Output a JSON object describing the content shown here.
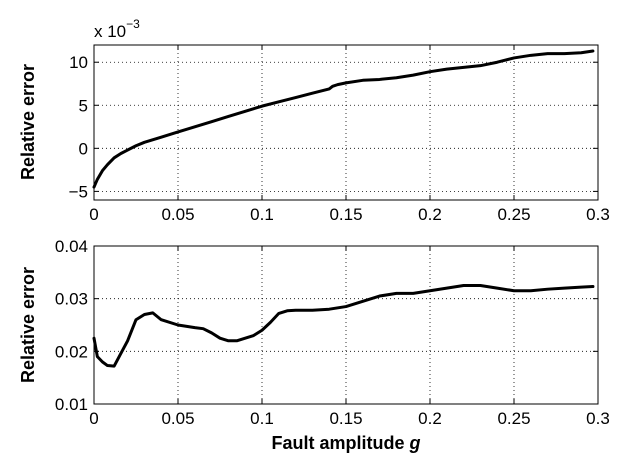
{
  "chart_data": [
    {
      "type": "line",
      "ylabel": "Relative error",
      "xlabel": "",
      "exponent_label": {
        "base": "x 10",
        "power": "−3"
      },
      "xlim": [
        0,
        0.3
      ],
      "ylim": [
        -6,
        12
      ],
      "xticks": [
        0,
        0.05,
        0.1,
        0.15,
        0.2,
        0.25,
        0.3
      ],
      "xtick_labels": [
        "0",
        "0.05",
        "0.1",
        "0.15",
        "0.2",
        "0.25",
        "0.3"
      ],
      "yticks": [
        -5,
        0,
        5,
        10
      ],
      "ytick_labels": [
        "−5",
        "0",
        "5",
        "10"
      ],
      "grid": true,
      "series": [
        {
          "x": [
            0,
            0.002,
            0.005,
            0.008,
            0.012,
            0.016,
            0.02,
            0.025,
            0.03,
            0.04,
            0.05,
            0.06,
            0.07,
            0.08,
            0.09,
            0.1,
            0.11,
            0.12,
            0.13,
            0.14,
            0.142,
            0.145,
            0.15,
            0.16,
            0.17,
            0.18,
            0.19,
            0.2,
            0.21,
            0.22,
            0.23,
            0.24,
            0.25,
            0.26,
            0.27,
            0.28,
            0.29,
            0.297
          ],
          "y": [
            -4.5,
            -3.6,
            -2.6,
            -1.9,
            -1.1,
            -0.6,
            -0.2,
            0.3,
            0.7,
            1.3,
            1.9,
            2.5,
            3.1,
            3.7,
            4.3,
            4.9,
            5.4,
            5.9,
            6.4,
            6.9,
            7.2,
            7.4,
            7.6,
            7.9,
            8.0,
            8.2,
            8.5,
            8.9,
            9.2,
            9.4,
            9.6,
            10.0,
            10.5,
            10.8,
            11.0,
            11.0,
            11.1,
            11.3
          ]
        }
      ]
    },
    {
      "type": "line",
      "ylabel": "Relative error",
      "xlabel": "Fault amplitude g",
      "xlabel_parts": {
        "text": "Fault amplitude ",
        "variable": "g"
      },
      "xlim": [
        0,
        0.3
      ],
      "ylim": [
        0.01,
        0.04
      ],
      "xticks": [
        0,
        0.05,
        0.1,
        0.15,
        0.2,
        0.25,
        0.3
      ],
      "xtick_labels": [
        "0",
        "0.05",
        "0.1",
        "0.15",
        "0.2",
        "0.25",
        "0.3"
      ],
      "yticks": [
        0.01,
        0.02,
        0.03,
        0.04
      ],
      "ytick_labels": [
        "0.01",
        "0.02",
        "0.03",
        "0.04"
      ],
      "grid": true,
      "series": [
        {
          "x": [
            0,
            0.002,
            0.005,
            0.008,
            0.012,
            0.015,
            0.02,
            0.025,
            0.03,
            0.035,
            0.04,
            0.05,
            0.06,
            0.065,
            0.07,
            0.075,
            0.08,
            0.085,
            0.09,
            0.095,
            0.1,
            0.105,
            0.11,
            0.115,
            0.12,
            0.13,
            0.14,
            0.15,
            0.16,
            0.17,
            0.18,
            0.19,
            0.2,
            0.21,
            0.22,
            0.23,
            0.24,
            0.25,
            0.26,
            0.27,
            0.28,
            0.29,
            0.297
          ],
          "y": [
            0.0225,
            0.019,
            0.018,
            0.0173,
            0.0172,
            0.019,
            0.022,
            0.026,
            0.027,
            0.0273,
            0.026,
            0.025,
            0.0245,
            0.0243,
            0.0235,
            0.0225,
            0.022,
            0.022,
            0.0225,
            0.023,
            0.024,
            0.0255,
            0.0272,
            0.0277,
            0.0278,
            0.0278,
            0.028,
            0.0285,
            0.0295,
            0.0305,
            0.031,
            0.031,
            0.0315,
            0.032,
            0.0325,
            0.0325,
            0.032,
            0.0315,
            0.0315,
            0.0318,
            0.032,
            0.0322,
            0.0323
          ]
        }
      ]
    }
  ]
}
